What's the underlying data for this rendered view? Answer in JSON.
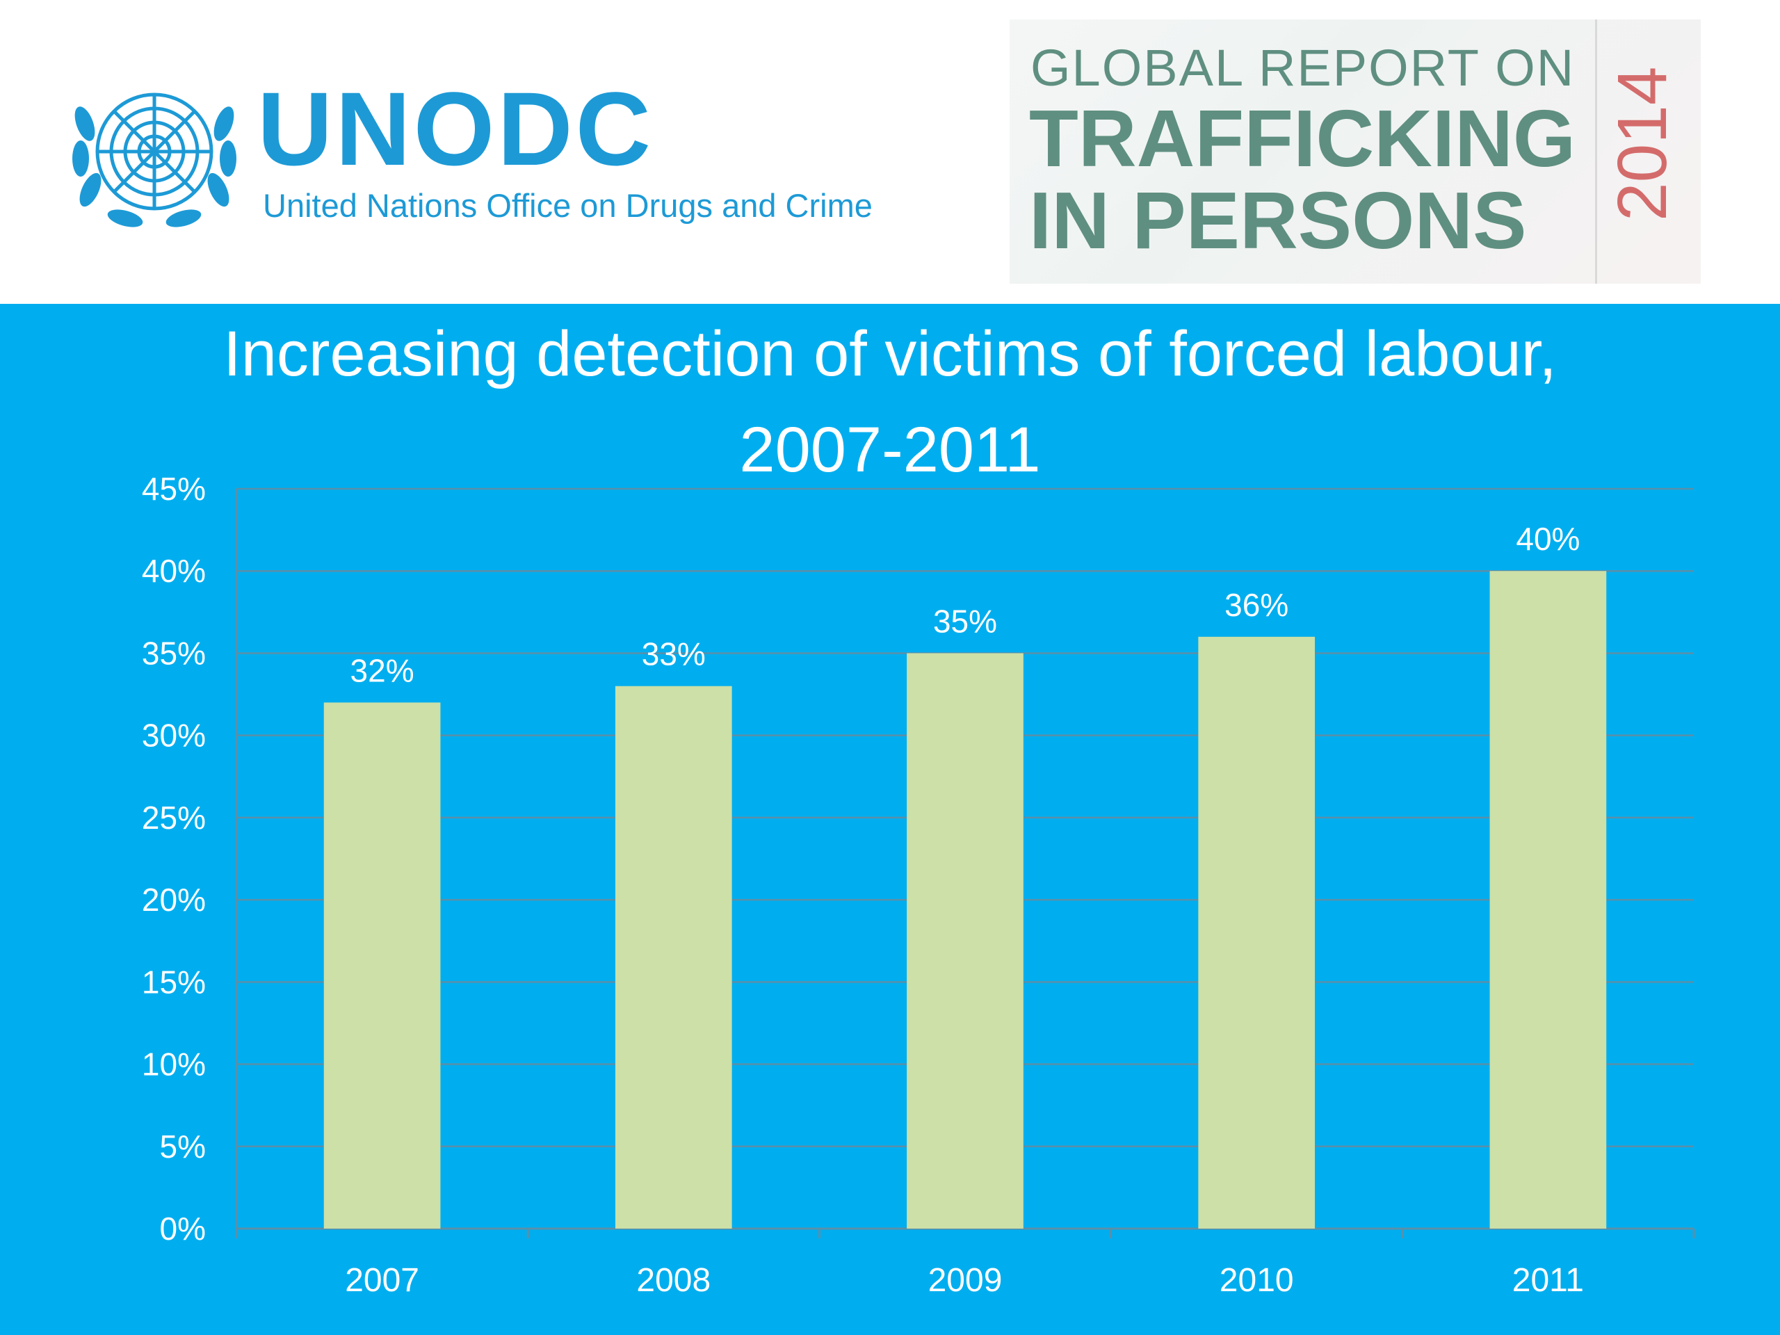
{
  "header": {
    "org_acronym": "UNODC",
    "org_fullname": "United Nations Office on Drugs and Crime",
    "report_line1": "GLOBAL REPORT ON",
    "report_line2": "TRAFFICKING",
    "report_line3": "IN PERSONS",
    "report_year": "2014"
  },
  "colors": {
    "panel_background": "#00aeef",
    "bar_fill": "#cce0a8",
    "brand_blue": "#1d9ad6",
    "report_green": "#5f8f80",
    "report_year_red": "#d46b6b"
  },
  "chart_data": {
    "type": "bar",
    "title": "Increasing detection of victims of forced labour, 2007-2011",
    "title_lines": [
      "Increasing detection of victims of forced labour,",
      "2007-2011"
    ],
    "categories": [
      "2007",
      "2008",
      "2009",
      "2010",
      "2011"
    ],
    "values": [
      32,
      33,
      35,
      36,
      40
    ],
    "data_labels": [
      "32%",
      "33%",
      "35%",
      "36%",
      "40%"
    ],
    "ylim": [
      0,
      45
    ],
    "yticks": [
      0,
      5,
      10,
      15,
      20,
      25,
      30,
      35,
      40,
      45
    ],
    "ytick_labels": [
      "0%",
      "5%",
      "10%",
      "15%",
      "20%",
      "25%",
      "30%",
      "35%",
      "40%",
      "45%"
    ],
    "xlabel": "",
    "ylabel": "",
    "grid": true,
    "legend": "none"
  }
}
